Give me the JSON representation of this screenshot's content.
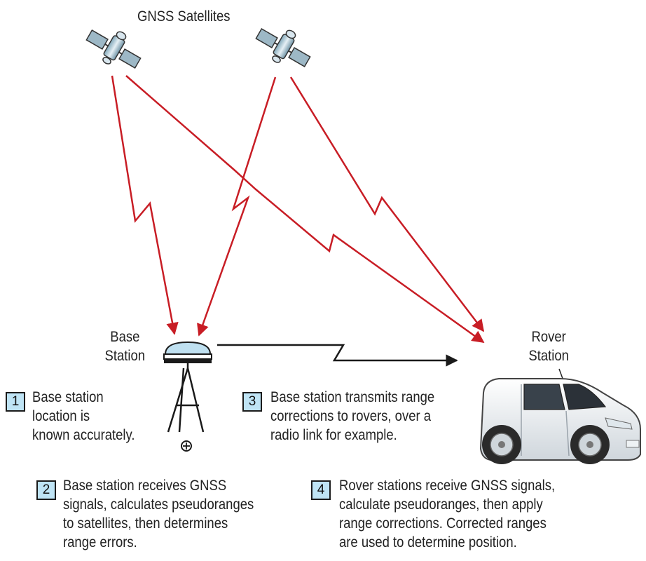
{
  "title": "GNSS Satellites",
  "base_station_label": [
    "Base",
    "Station"
  ],
  "rover_station_label": [
    "Rover",
    "Station"
  ],
  "colors": {
    "signal": "#c81d25",
    "radio_link": "#1a1a1a",
    "step_box_fill": "#bfe4f5"
  },
  "steps": [
    {
      "number": "1",
      "lines": [
        "Base station",
        "location is",
        "known accurately."
      ]
    },
    {
      "number": "2",
      "lines": [
        "Base station receives GNSS",
        "signals, calculates pseudoranges",
        "to satellites, then determines",
        "range errors."
      ]
    },
    {
      "number": "3",
      "lines": [
        "Base station transmits range",
        "corrections to rovers, over a",
        "radio link for example."
      ]
    },
    {
      "number": "4",
      "lines": [
        "Rover stations receive GNSS signals,",
        "calculate pseudoranges, then apply",
        "range corrections. Corrected ranges",
        "are used to determine position."
      ]
    }
  ]
}
